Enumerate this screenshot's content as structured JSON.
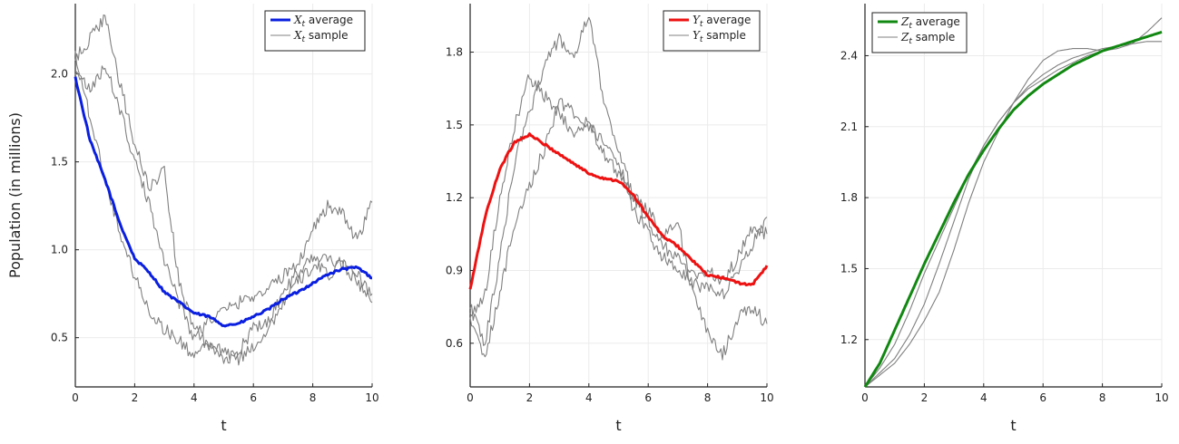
{
  "colors": {
    "x_average": "#0a1fe0",
    "y_average": "#ee1111",
    "z_average": "#118811",
    "sample": "#808080"
  },
  "chart_data": [
    {
      "type": "line",
      "panel": "X",
      "title": "",
      "xlabel": "t",
      "ylabel": "Population (in millions)",
      "xlim": [
        0,
        10
      ],
      "ylim": [
        0.22,
        2.4
      ],
      "xticks": [
        0,
        2,
        4,
        6,
        8,
        10
      ],
      "xtick_labels": [
        "0",
        "2",
        "4",
        "6",
        "8",
        "10"
      ],
      "yticks": [
        0.5,
        1.0,
        1.5,
        2.0
      ],
      "ytick_labels": [
        "0.5",
        "1.0",
        "1.5",
        "2.0"
      ],
      "grid": true,
      "legend_position": "top-right",
      "series": [
        {
          "name": "X_t average",
          "legend_var": "X",
          "legend_sub": "t",
          "legend_text": "average",
          "role": "average",
          "x": [
            0,
            0.5,
            1,
            1.5,
            2,
            2.5,
            3,
            3.5,
            4,
            4.5,
            5,
            5.5,
            6,
            6.5,
            7,
            7.5,
            8,
            8.5,
            9,
            9.5,
            10
          ],
          "y": [
            1.98,
            1.62,
            1.4,
            1.15,
            0.95,
            0.87,
            0.76,
            0.7,
            0.64,
            0.62,
            0.57,
            0.58,
            0.62,
            0.66,
            0.72,
            0.76,
            0.81,
            0.86,
            0.89,
            0.9,
            0.84
          ]
        },
        {
          "name": "X_t sample",
          "legend_var": "X",
          "legend_sub": "t",
          "legend_text": "sample",
          "role": "sample",
          "x": [
            0,
            0.5,
            1,
            1.5,
            2,
            2.5,
            3,
            3.5,
            4,
            4.5,
            5,
            5.5,
            6,
            6.5,
            7,
            7.5,
            8,
            8.5,
            9,
            9.5,
            10
          ],
          "y": [
            2.08,
            2.2,
            2.32,
            1.95,
            1.6,
            1.35,
            1.45,
            0.8,
            0.55,
            0.45,
            0.37,
            0.42,
            0.55,
            0.6,
            0.75,
            0.88,
            0.95,
            0.86,
            0.92,
            0.85,
            0.75
          ]
        },
        {
          "name": "X_t sample 2",
          "role": "sample",
          "x": [
            0,
            0.5,
            1,
            1.5,
            2,
            2.5,
            3,
            3.5,
            4,
            4.5,
            5,
            5.5,
            6,
            6.5,
            7,
            7.5,
            8,
            8.5,
            9,
            9.5,
            10
          ],
          "y": [
            2.03,
            1.9,
            2.05,
            1.8,
            1.5,
            1.25,
            0.95,
            0.7,
            0.5,
            0.6,
            0.65,
            0.7,
            0.74,
            0.78,
            0.85,
            0.92,
            1.12,
            1.25,
            1.2,
            1.05,
            1.27
          ]
        },
        {
          "name": "X_t sample 3",
          "role": "sample",
          "x": [
            0,
            0.5,
            1,
            1.5,
            2,
            2.5,
            3,
            3.5,
            4,
            4.5,
            5,
            5.5,
            6,
            6.5,
            7,
            7.5,
            8,
            8.5,
            9,
            9.5,
            10
          ],
          "y": [
            2.12,
            1.75,
            1.4,
            1.1,
            0.85,
            0.65,
            0.55,
            0.48,
            0.4,
            0.45,
            0.42,
            0.38,
            0.45,
            0.55,
            0.7,
            0.82,
            0.9,
            0.95,
            0.92,
            0.82,
            0.7
          ]
        }
      ]
    },
    {
      "type": "line",
      "panel": "Y",
      "title": "",
      "xlabel": "t",
      "ylabel": "",
      "xlim": [
        0,
        10
      ],
      "ylim": [
        0.42,
        2.0
      ],
      "xticks": [
        0,
        2,
        4,
        6,
        8,
        10
      ],
      "xtick_labels": [
        "0",
        "2",
        "4",
        "6",
        "8",
        "10"
      ],
      "yticks": [
        0.6,
        0.9,
        1.2,
        1.5,
        1.8
      ],
      "ytick_labels": [
        "0.6",
        "0.9",
        "1.2",
        "1.5",
        "1.8"
      ],
      "grid": true,
      "legend_position": "top-right",
      "series": [
        {
          "name": "Y_t average",
          "legend_var": "Y",
          "legend_sub": "t",
          "legend_text": "average",
          "role": "average",
          "x": [
            0,
            0.5,
            1,
            1.5,
            2,
            2.5,
            3,
            3.5,
            4,
            4.5,
            5,
            5.5,
            6,
            6.5,
            7,
            7.5,
            8,
            8.5,
            9,
            9.5,
            10
          ],
          "y": [
            0.82,
            1.12,
            1.32,
            1.43,
            1.46,
            1.42,
            1.38,
            1.34,
            1.3,
            1.28,
            1.27,
            1.21,
            1.12,
            1.04,
            1.0,
            0.94,
            0.88,
            0.87,
            0.85,
            0.84,
            0.92
          ]
        },
        {
          "name": "Y_t sample",
          "legend_var": "Y",
          "legend_sub": "t",
          "legend_text": "sample",
          "role": "sample",
          "x": [
            0,
            0.5,
            1,
            1.5,
            2,
            2.5,
            3,
            3.5,
            4,
            4.5,
            5,
            5.5,
            6,
            6.5,
            7,
            7.5,
            8,
            8.5,
            9,
            9.5,
            10
          ],
          "y": [
            0.75,
            0.6,
            0.95,
            1.35,
            1.55,
            1.75,
            1.85,
            1.78,
            1.95,
            1.6,
            1.4,
            1.2,
            1.15,
            1.05,
            1.1,
            0.8,
            0.65,
            0.55,
            0.7,
            0.75,
            0.68
          ]
        },
        {
          "name": "Y_t sample 2",
          "role": "sample",
          "x": [
            0,
            0.5,
            1,
            1.5,
            2,
            2.5,
            3,
            3.5,
            4,
            4.5,
            5,
            5.5,
            6,
            6.5,
            7,
            7.5,
            8,
            8.5,
            9,
            9.5,
            10
          ],
          "y": [
            0.68,
            0.55,
            0.8,
            1.1,
            1.25,
            1.4,
            1.6,
            1.55,
            1.5,
            1.42,
            1.35,
            1.15,
            1.05,
            0.95,
            0.9,
            0.85,
            0.82,
            0.8,
            0.9,
            1.0,
            1.12
          ]
        },
        {
          "name": "Y_t sample 3",
          "role": "sample",
          "x": [
            0,
            0.5,
            1,
            1.5,
            2,
            2.5,
            3,
            3.5,
            4,
            4.5,
            5,
            5.5,
            6,
            6.5,
            7,
            7.5,
            8,
            8.5,
            9,
            9.5,
            10
          ],
          "y": [
            0.72,
            0.8,
            1.2,
            1.5,
            1.7,
            1.62,
            1.55,
            1.45,
            1.5,
            1.38,
            1.3,
            1.2,
            1.1,
            1.0,
            0.95,
            0.88,
            0.9,
            0.85,
            0.95,
            1.08,
            1.05
          ]
        }
      ]
    },
    {
      "type": "line",
      "panel": "Z",
      "title": "",
      "xlabel": "t",
      "ylabel": "",
      "xlim": [
        0,
        10
      ],
      "ylim": [
        1.0,
        2.62
      ],
      "xticks": [
        0,
        2,
        4,
        6,
        8,
        10
      ],
      "xtick_labels": [
        "0",
        "2",
        "4",
        "6",
        "8",
        "10"
      ],
      "yticks": [
        1.2,
        1.5,
        1.8,
        2.1,
        2.4
      ],
      "ytick_labels": [
        "1.2",
        "1.5",
        "1.8",
        "2.1",
        "2.4"
      ],
      "grid": true,
      "legend_position": "top-left",
      "series": [
        {
          "name": "Z_t average",
          "legend_var": "Z",
          "legend_sub": "t",
          "legend_text": "average",
          "role": "average",
          "x": [
            0,
            0.5,
            1,
            1.5,
            2,
            2.5,
            3,
            3.5,
            4,
            4.5,
            5,
            5.5,
            6,
            6.5,
            7,
            7.5,
            8,
            8.5,
            9,
            9.5,
            10
          ],
          "y": [
            1.0,
            1.1,
            1.24,
            1.38,
            1.52,
            1.65,
            1.78,
            1.9,
            2.0,
            2.09,
            2.17,
            2.23,
            2.28,
            2.32,
            2.36,
            2.39,
            2.42,
            2.44,
            2.46,
            2.48,
            2.5
          ]
        },
        {
          "name": "Z_t sample",
          "legend_var": "Z",
          "legend_sub": "t",
          "legend_text": "sample",
          "role": "sample",
          "x": [
            0,
            0.5,
            1,
            1.5,
            2,
            2.5,
            3,
            3.5,
            4,
            4.5,
            5,
            5.5,
            6,
            6.5,
            7,
            7.5,
            8,
            8.5,
            9,
            9.5,
            10
          ],
          "y": [
            1.0,
            1.06,
            1.12,
            1.22,
            1.35,
            1.52,
            1.7,
            1.88,
            2.02,
            2.12,
            2.2,
            2.27,
            2.32,
            2.36,
            2.39,
            2.41,
            2.43,
            2.44,
            2.45,
            2.46,
            2.46
          ]
        },
        {
          "name": "Z_t sample 2",
          "role": "sample",
          "x": [
            0,
            0.5,
            1,
            1.5,
            2,
            2.5,
            3,
            3.5,
            4,
            4.5,
            5,
            5.5,
            6,
            6.5,
            7,
            7.5,
            8,
            8.5,
            9,
            9.5,
            10
          ],
          "y": [
            1.0,
            1.05,
            1.1,
            1.18,
            1.28,
            1.4,
            1.58,
            1.78,
            1.95,
            2.08,
            2.2,
            2.3,
            2.38,
            2.42,
            2.43,
            2.43,
            2.42,
            2.43,
            2.45,
            2.5,
            2.56
          ]
        },
        {
          "name": "Z_t sample 3",
          "role": "sample",
          "x": [
            0,
            0.5,
            1,
            1.5,
            2,
            2.5,
            3,
            3.5,
            4,
            4.5,
            5,
            5.5,
            6,
            6.5,
            7,
            7.5,
            8,
            8.5,
            9,
            9.5,
            10
          ],
          "y": [
            1.0,
            1.08,
            1.18,
            1.32,
            1.48,
            1.62,
            1.76,
            1.9,
            2.02,
            2.12,
            2.2,
            2.26,
            2.3,
            2.34,
            2.37,
            2.4,
            2.42,
            2.44,
            2.46,
            2.48,
            2.5
          ]
        }
      ]
    }
  ]
}
